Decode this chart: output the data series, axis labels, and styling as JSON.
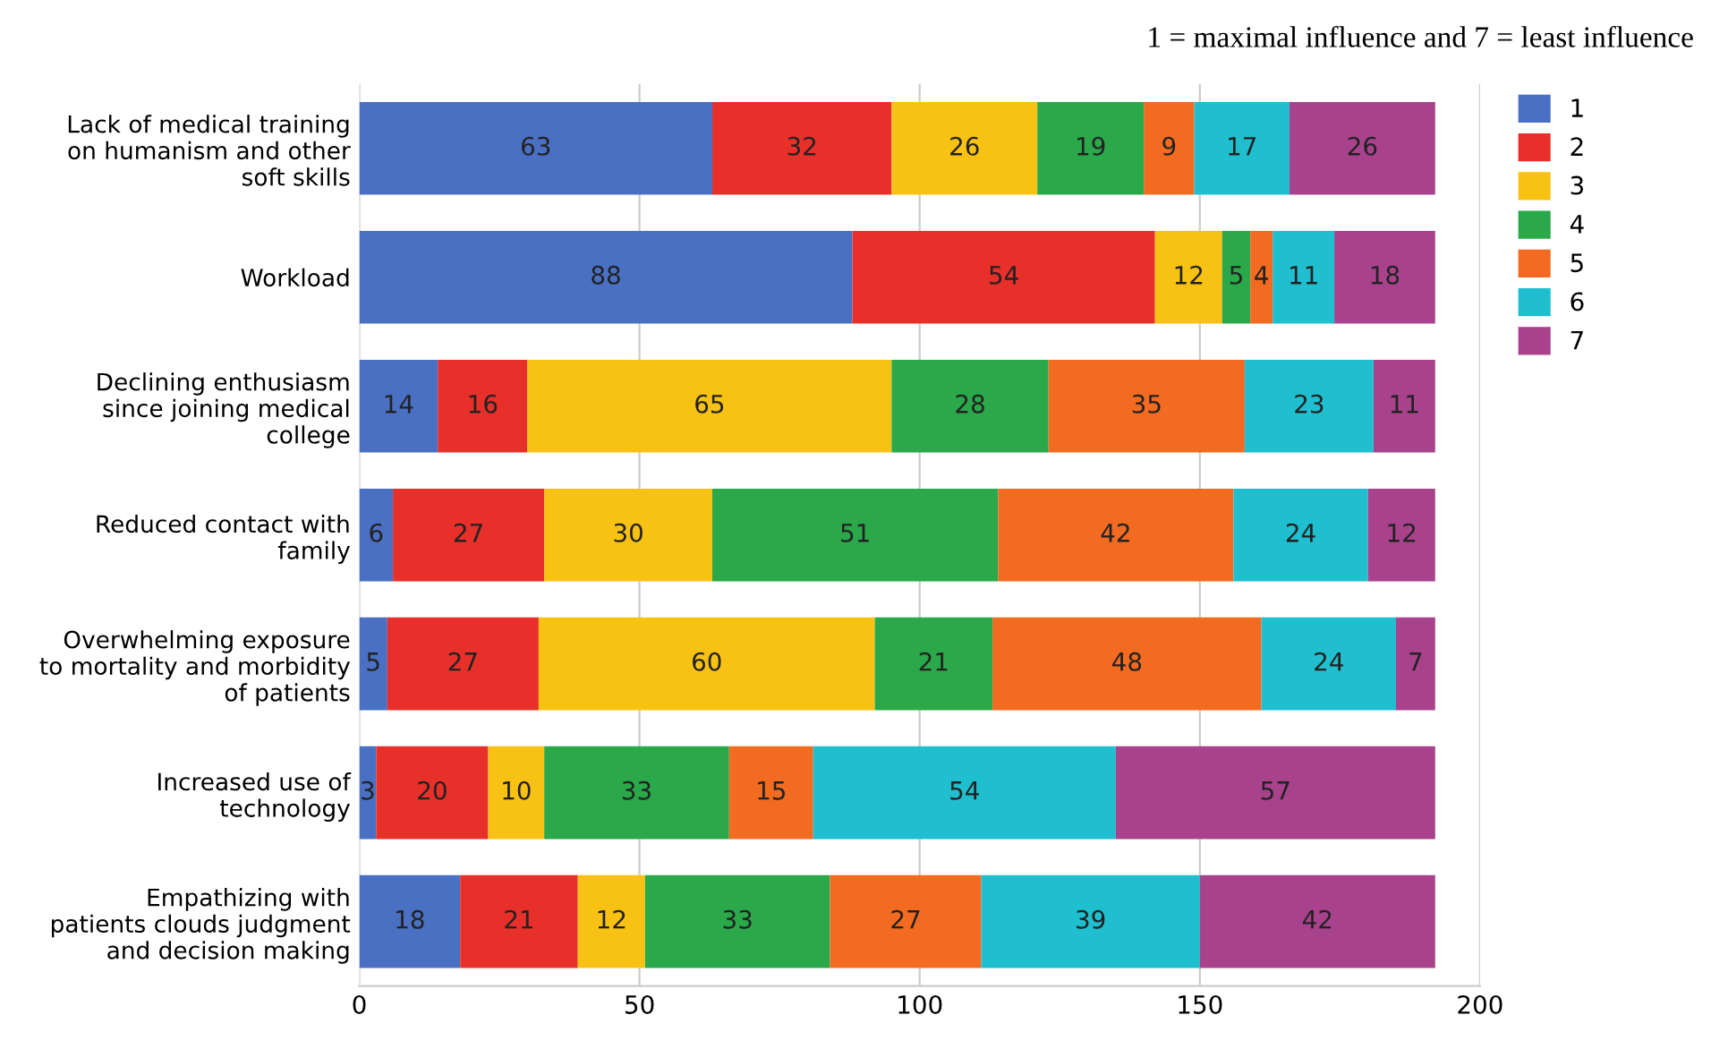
{
  "chart_data": {
    "type": "bar",
    "orientation": "horizontal",
    "stacked": true,
    "data_labels": true,
    "legend_title": "1 = maximal influence and 7 = least influence",
    "legend": "right",
    "grid": "x",
    "categories": [
      "Lack of medical training\non humanism and other\nsoft skills",
      "Workload",
      "Declining enthusiasm\nsince joining medical\ncollege",
      "Reduced contact with\nfamily",
      "Overwhelming exposure\nto mortality and morbidity\nof patients",
      "Increased use of\ntechnology",
      "Empathizing with\npatients clouds judgment\nand decision making"
    ],
    "series": [
      {
        "name": "1",
        "color": "#4a70c4",
        "values": [
          63,
          88,
          14,
          6,
          5,
          3,
          18
        ]
      },
      {
        "name": "2",
        "color": "#e8302a",
        "values": [
          32,
          54,
          16,
          27,
          27,
          20,
          21
        ]
      },
      {
        "name": "3",
        "color": "#f8c214",
        "values": [
          26,
          12,
          65,
          30,
          60,
          10,
          12
        ]
      },
      {
        "name": "4",
        "color": "#2aa84a",
        "values": [
          19,
          5,
          28,
          51,
          21,
          33,
          33
        ]
      },
      {
        "name": "5",
        "color": "#f26b21",
        "values": [
          9,
          4,
          35,
          42,
          48,
          15,
          27
        ]
      },
      {
        "name": "6",
        "color": "#1fbfd0",
        "values": [
          17,
          11,
          23,
          24,
          24,
          54,
          39
        ]
      },
      {
        "name": "7",
        "color": "#a8428d",
        "values": [
          26,
          18,
          11,
          12,
          7,
          57,
          42
        ]
      }
    ],
    "xlim": [
      0,
      200
    ],
    "xticks": [
      0,
      50,
      100,
      150,
      200
    ]
  }
}
